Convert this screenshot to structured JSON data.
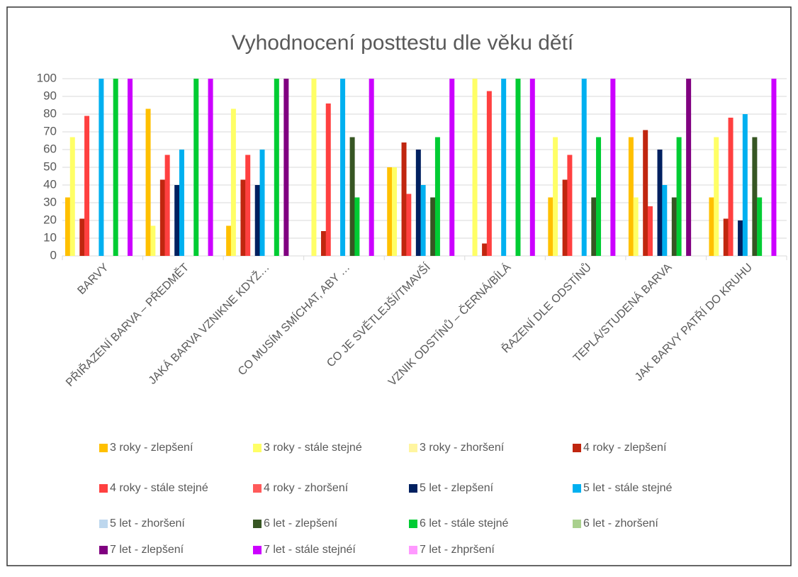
{
  "chart_data": {
    "type": "bar",
    "title": "Vyhodnocení posttestu dle věku dětí",
    "categories": [
      "BARVY",
      "PŘIŘAZENÍ BARVA – PŘEDMĚT",
      "JAKÁ BARVA VZNIKNE KDYŽ…",
      "CO MUSÍM SMÍCHAT, ABY …",
      "CO JE SVĚTLEJŠÍ/TMAVŠÍ",
      "VZNIK ODSTÍNŮ – ČERNÁ/BÍLÁ",
      "ŘAZENÍ DLE ODSTÍNŮ",
      "TEPLÁ/STUDENÁ BARVA",
      "JAK BARVY PATŘÍ DO KRUHU"
    ],
    "series": [
      {
        "name": "3 roky - zlepšení",
        "color": "#FFC000",
        "values": [
          33,
          83,
          17,
          0,
          50,
          0,
          33,
          67,
          33
        ]
      },
      {
        "name": "3 roky - stále stejné",
        "color": "#FFFF66",
        "values": [
          67,
          17,
          83,
          100,
          50,
          100,
          67,
          33,
          67
        ]
      },
      {
        "name": "3 roky - zhoršení",
        "color": "#FFF5A0",
        "values": [
          0,
          0,
          0,
          0,
          0,
          0,
          0,
          0,
          0
        ]
      },
      {
        "name": "4 roky - zlepšení",
        "color": "#C0260F",
        "values": [
          21,
          43,
          43,
          14,
          64,
          7,
          43,
          71,
          21
        ]
      },
      {
        "name": "4 roky - stále stejné",
        "color": "#FF4040",
        "values": [
          79,
          57,
          57,
          86,
          35,
          93,
          57,
          28,
          78
        ]
      },
      {
        "name": "4 roky - zhoršení",
        "color": "#FF5A5A",
        "values": [
          0,
          0,
          0,
          0,
          0,
          0,
          0,
          0,
          0
        ]
      },
      {
        "name": "5 let - zlepšení",
        "color": "#002060",
        "values": [
          0,
          40,
          40,
          0,
          60,
          0,
          0,
          60,
          20
        ]
      },
      {
        "name": "5 let - stále stejné",
        "color": "#00B0F0",
        "values": [
          100,
          60,
          60,
          100,
          40,
          100,
          100,
          40,
          80
        ]
      },
      {
        "name": "5 let - zhoršení",
        "color": "#BDD7EE",
        "values": [
          0,
          0,
          0,
          0,
          0,
          0,
          0,
          0,
          0
        ]
      },
      {
        "name": "6 let - zlepšení",
        "color": "#375623",
        "values": [
          0,
          0,
          0,
          67,
          33,
          0,
          33,
          33,
          67
        ]
      },
      {
        "name": "6 let - stále stejné",
        "color": "#00CC33",
        "values": [
          100,
          100,
          100,
          33,
          67,
          100,
          67,
          67,
          33
        ]
      },
      {
        "name": "6 let - zhoršení",
        "color": "#A9D08E",
        "values": [
          0,
          0,
          0,
          0,
          0,
          0,
          0,
          0,
          0
        ]
      },
      {
        "name": "7 let - zlepšení",
        "color": "#800080",
        "values": [
          0,
          0,
          100,
          0,
          0,
          0,
          0,
          100,
          0
        ]
      },
      {
        "name": "7 let - stále stejnéí",
        "color": "#CC00FF",
        "values": [
          100,
          100,
          0,
          100,
          100,
          100,
          100,
          0,
          100
        ]
      },
      {
        "name": "7 let - zhpršení",
        "color": "#FF99FF",
        "values": [
          0,
          0,
          0,
          0,
          0,
          0,
          0,
          0,
          0
        ]
      }
    ],
    "ylim": [
      0,
      100
    ],
    "yticks": [
      0,
      10,
      20,
      30,
      40,
      50,
      60,
      70,
      80,
      90,
      100
    ],
    "grid": true,
    "legend": "bottom"
  }
}
